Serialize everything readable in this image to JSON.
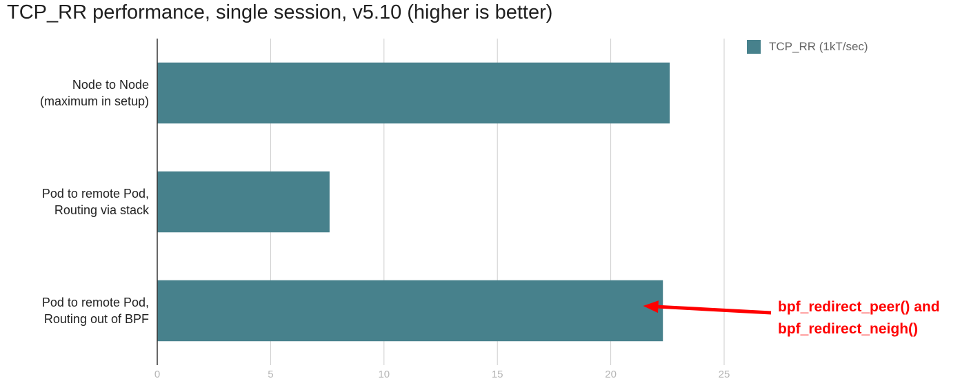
{
  "chart_data": {
    "type": "bar",
    "orientation": "horizontal",
    "title": "TCP_RR performance, single session, v5.10 (higher is better)",
    "categories": [
      [
        "Node to Node",
        "(maximum in setup)"
      ],
      [
        "Pod to remote Pod,",
        "Routing via stack"
      ],
      [
        "Pod to remote Pod,",
        "Routing out of BPF"
      ]
    ],
    "series": [
      {
        "name": "TCP_RR (1kT/sec)",
        "values": [
          22.6,
          7.6,
          22.3
        ],
        "color": "#47818c"
      }
    ],
    "xlim": [
      0,
      28
    ],
    "xticks": [
      0,
      5,
      10,
      15,
      20,
      25
    ],
    "grid": true,
    "legend": "top-right",
    "annotation": {
      "lines": [
        "bpf_redirect_peer() and",
        "bpf_redirect_neigh()"
      ],
      "color": "#ff0000",
      "points_to_category": 2,
      "points_to_value": 21
    }
  }
}
